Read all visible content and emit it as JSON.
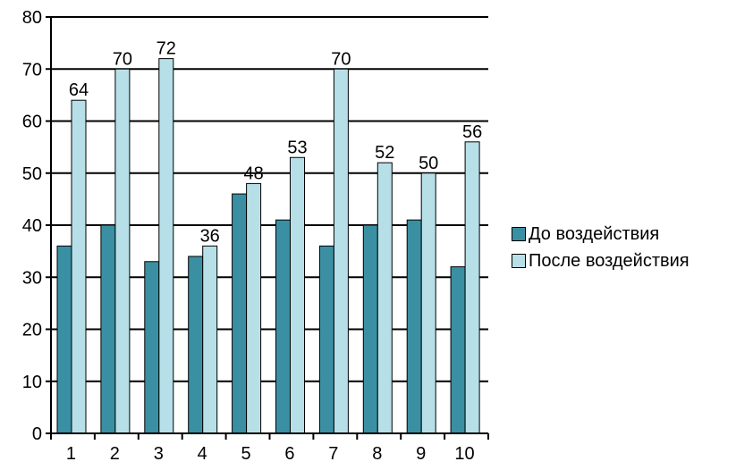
{
  "chart_data": {
    "type": "bar",
    "categories": [
      "1",
      "2",
      "3",
      "4",
      "5",
      "6",
      "7",
      "8",
      "9",
      "10"
    ],
    "series": [
      {
        "name": "До воздействия",
        "values": [
          36,
          40,
          33,
          34,
          46,
          41,
          36,
          40,
          41,
          32
        ],
        "color": "#3b8fa3",
        "show_labels": false
      },
      {
        "name": "После воздействия",
        "values": [
          64,
          70,
          72,
          36,
          48,
          53,
          70,
          52,
          50,
          56
        ],
        "color": "#b7dfe8",
        "show_labels": true
      }
    ],
    "ylim": [
      0,
      80
    ],
    "yticks": [
      "0",
      "10",
      "20",
      "30",
      "40",
      "50",
      "60",
      "70",
      "80"
    ],
    "title": "",
    "xlabel": "",
    "ylabel": "",
    "grid": true,
    "legend_position": "right"
  }
}
